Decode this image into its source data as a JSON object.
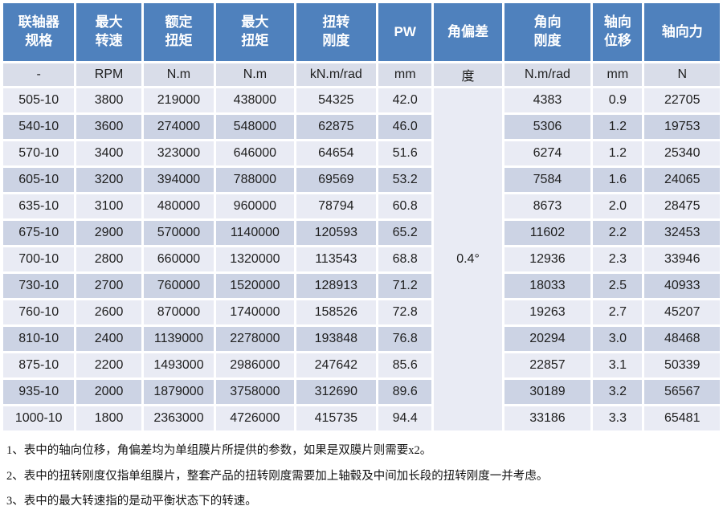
{
  "table": {
    "headers": [
      "联轴器\n规格",
      "最大\n转速",
      "额定\n扭矩",
      "最大\n扭矩",
      "扭转\n刚度",
      "PW",
      "角偏差",
      "角向\n刚度",
      "轴向\n位移",
      "轴向力"
    ],
    "units": [
      "-",
      "RPM",
      "N.m",
      "N.m",
      "kN.m/rad",
      "mm",
      "度",
      "N.m/rad",
      "mm",
      "N"
    ],
    "angular_deviation": "0.4°",
    "column_names": [
      "spec",
      "max-speed",
      "rated-torque",
      "max-torque",
      "torsional-stiffness",
      "pw",
      "angular-stiffness",
      "axial-displacement",
      "axial-force"
    ],
    "rows": [
      [
        "505-10",
        "3800",
        "219000",
        "438000",
        "54325",
        "42.0",
        "4383",
        "0.9",
        "22705"
      ],
      [
        "540-10",
        "3600",
        "274000",
        "548000",
        "62875",
        "46.0",
        "5306",
        "1.2",
        "19753"
      ],
      [
        "570-10",
        "3400",
        "323000",
        "646000",
        "64654",
        "51.6",
        "6274",
        "1.2",
        "25340"
      ],
      [
        "605-10",
        "3200",
        "394000",
        "788000",
        "69569",
        "53.2",
        "7584",
        "1.6",
        "24065"
      ],
      [
        "635-10",
        "3100",
        "480000",
        "960000",
        "78794",
        "60.8",
        "8673",
        "2.0",
        "28475"
      ],
      [
        "675-10",
        "2900",
        "570000",
        "1140000",
        "120593",
        "65.2",
        "11602",
        "2.2",
        "32453"
      ],
      [
        "700-10",
        "2800",
        "660000",
        "1320000",
        "113543",
        "68.8",
        "12936",
        "2.3",
        "33946"
      ],
      [
        "730-10",
        "2700",
        "760000",
        "1520000",
        "128913",
        "71.2",
        "18033",
        "2.5",
        "40933"
      ],
      [
        "760-10",
        "2600",
        "870000",
        "1740000",
        "158526",
        "72.8",
        "19263",
        "2.7",
        "45207"
      ],
      [
        "810-10",
        "2400",
        "1139000",
        "2278000",
        "193848",
        "76.8",
        "20294",
        "3.0",
        "48468"
      ],
      [
        "875-10",
        "2200",
        "1493000",
        "2986000",
        "247642",
        "85.6",
        "22857",
        "3.1",
        "50339"
      ],
      [
        "935-10",
        "2000",
        "1879000",
        "3758000",
        "312690",
        "89.6",
        "30189",
        "3.2",
        "56567"
      ],
      [
        "1000-10",
        "1800",
        "2363000",
        "4726000",
        "415735",
        "94.4",
        "33186",
        "3.3",
        "65481"
      ]
    ]
  },
  "colors": {
    "header_bg": "#4f81bd",
    "row_light": "#e9ebf4",
    "row_dark": "#ccd3e4",
    "units_bg": "#d9dde9",
    "merged_bg": "#e7e9f1"
  },
  "notes": [
    "1、表中的轴向位移，角偏差均为单组膜片所提供的参数，如果是双膜片则需要x2。",
    "2、表中的扭转刚度仅指单组膜片，整套产品的扭转刚度需要加上轴毂及中间加长段的扭转刚度一并考虑。",
    "3、表中的最大转速指的是动平衡状态下的转速。"
  ]
}
